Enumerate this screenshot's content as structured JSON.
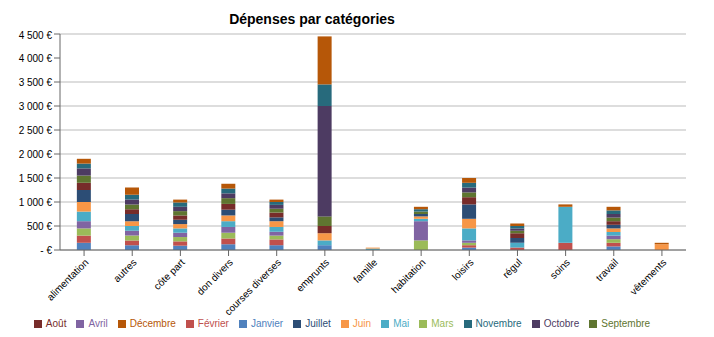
{
  "chart_data": {
    "type": "bar",
    "title": "Dépenses par catégories",
    "categories": [
      "alimentation",
      "autres",
      "côte part",
      "don divers",
      "courses diverses",
      "emprunts",
      "famille",
      "habitation",
      "loisirs",
      "régul",
      "soins",
      "travail",
      "vêtements"
    ],
    "series": [
      {
        "name": "Janvier",
        "color": "#4F81BD",
        "values": [
          150,
          100,
          90,
          120,
          100,
          100,
          0,
          0,
          50,
          0,
          0,
          75,
          0
        ]
      },
      {
        "name": "Février",
        "color": "#C0504D",
        "values": [
          150,
          100,
          90,
          120,
          120,
          0,
          0,
          0,
          50,
          50,
          150,
          75,
          0
        ]
      },
      {
        "name": "Mars",
        "color": "#9BBB59",
        "values": [
          150,
          100,
          90,
          120,
          80,
          0,
          0,
          200,
          50,
          0,
          0,
          75,
          0
        ]
      },
      {
        "name": "Avril",
        "color": "#8064A2",
        "values": [
          150,
          100,
          90,
          120,
          80,
          0,
          0,
          400,
          50,
          0,
          0,
          75,
          0
        ]
      },
      {
        "name": "Mai",
        "color": "#4BACC6",
        "values": [
          200,
          100,
          90,
          120,
          100,
          100,
          30,
          50,
          250,
          100,
          750,
          75,
          0
        ]
      },
      {
        "name": "Juin",
        "color": "#F79646",
        "values": [
          200,
          100,
          90,
          120,
          120,
          150,
          20,
          50,
          200,
          0,
          0,
          75,
          120
        ]
      },
      {
        "name": "Juillet",
        "color": "#2C4D75",
        "values": [
          250,
          150,
          90,
          120,
          80,
          0,
          0,
          50,
          300,
          100,
          0,
          75,
          0
        ]
      },
      {
        "name": "Août",
        "color": "#772C2A",
        "values": [
          150,
          100,
          90,
          120,
          100,
          150,
          0,
          0,
          150,
          100,
          0,
          75,
          0
        ]
      },
      {
        "name": "Septembre",
        "color": "#5F7530",
        "values": [
          150,
          100,
          90,
          120,
          80,
          200,
          0,
          50,
          100,
          50,
          0,
          75,
          0
        ]
      },
      {
        "name": "Octobre",
        "color": "#4D3B62",
        "values": [
          150,
          100,
          90,
          100,
          80,
          2300,
          0,
          0,
          100,
          50,
          0,
          75,
          0
        ]
      },
      {
        "name": "Novembre",
        "color": "#276A7C",
        "values": [
          100,
          100,
          90,
          100,
          60,
          450,
          0,
          50,
          100,
          50,
          0,
          75,
          0
        ]
      },
      {
        "name": "Décembre",
        "color": "#B65708",
        "values": [
          100,
          150,
          60,
          100,
          50,
          1000,
          0,
          50,
          100,
          50,
          50,
          75,
          30
        ]
      }
    ],
    "ylim": [
      0,
      4500
    ],
    "yticks": [
      {
        "value": 0,
        "label": "- €"
      },
      {
        "value": 500,
        "label": "500 €"
      },
      {
        "value": 1000,
        "label": "1 000 €"
      },
      {
        "value": 1500,
        "label": "1 500 €"
      },
      {
        "value": 2000,
        "label": "2 000 €"
      },
      {
        "value": 2500,
        "label": "2 500 €"
      },
      {
        "value": 3000,
        "label": "3 000 €"
      },
      {
        "value": 3500,
        "label": "3 500 €"
      },
      {
        "value": 4000,
        "label": "4 000 €"
      },
      {
        "value": 4500,
        "label": "4 500 €"
      }
    ],
    "stacked": true,
    "grid": true,
    "legend": "bottom"
  }
}
